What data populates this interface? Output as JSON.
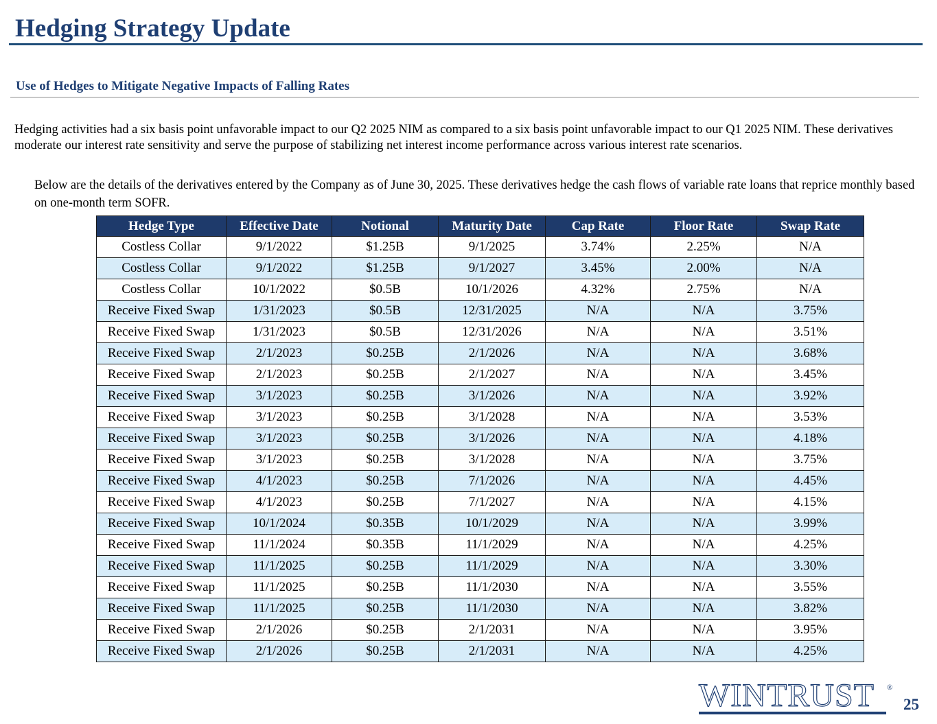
{
  "title": "Hedging Strategy Update",
  "subtitle": "Use of Hedges to Mitigate Negative Impacts of Falling Rates",
  "paragraphs": [
    "Hedging activities had a six basis point unfavorable impact to our Q2 2025 NIM as compared to a six basis point unfavorable impact to our Q1 2025 NIM. These derivatives moderate our interest rate sensitivity and serve the purpose of stabilizing net interest income performance across various interest rate scenarios.",
    "Below are the details of the derivatives entered by the Company as of June 30, 2025. These derivatives hedge the cash flows of variable rate loans that reprice monthly based on one-month term SOFR."
  ],
  "table": {
    "headers": [
      "Hedge Type",
      "Effective Date",
      "Notional",
      "Maturity Date",
      "Cap Rate",
      "Floor Rate",
      "Swap Rate"
    ],
    "rows": [
      [
        "Costless Collar",
        "9/1/2022",
        "$1.25B",
        "9/1/2025",
        "3.74%",
        "2.25%",
        "N/A"
      ],
      [
        "Costless Collar",
        "9/1/2022",
        "$1.25B",
        "9/1/2027",
        "3.45%",
        "2.00%",
        "N/A"
      ],
      [
        "Costless Collar",
        "10/1/2022",
        "$0.5B",
        "10/1/2026",
        "4.32%",
        "2.75%",
        "N/A"
      ],
      [
        "Receive Fixed Swap",
        "1/31/2023",
        "$0.5B",
        "12/31/2025",
        "N/A",
        "N/A",
        "3.75%"
      ],
      [
        "Receive Fixed Swap",
        "1/31/2023",
        "$0.5B",
        "12/31/2026",
        "N/A",
        "N/A",
        "3.51%"
      ],
      [
        "Receive Fixed Swap",
        "2/1/2023",
        "$0.25B",
        "2/1/2026",
        "N/A",
        "N/A",
        "3.68%"
      ],
      [
        "Receive Fixed Swap",
        "2/1/2023",
        "$0.25B",
        "2/1/2027",
        "N/A",
        "N/A",
        "3.45%"
      ],
      [
        "Receive Fixed Swap",
        "3/1/2023",
        "$0.25B",
        "3/1/2026",
        "N/A",
        "N/A",
        "3.92%"
      ],
      [
        "Receive Fixed Swap",
        "3/1/2023",
        "$0.25B",
        "3/1/2028",
        "N/A",
        "N/A",
        "3.53%"
      ],
      [
        "Receive Fixed Swap",
        "3/1/2023",
        "$0.25B",
        "3/1/2026",
        "N/A",
        "N/A",
        "4.18%"
      ],
      [
        "Receive Fixed Swap",
        "3/1/2023",
        "$0.25B",
        "3/1/2028",
        "N/A",
        "N/A",
        "3.75%"
      ],
      [
        "Receive Fixed Swap",
        "4/1/2023",
        "$0.25B",
        "7/1/2026",
        "N/A",
        "N/A",
        "4.45%"
      ],
      [
        "Receive Fixed Swap",
        "4/1/2023",
        "$0.25B",
        "7/1/2027",
        "N/A",
        "N/A",
        "4.15%"
      ],
      [
        "Receive Fixed Swap",
        "10/1/2024",
        "$0.35B",
        "10/1/2029",
        "N/A",
        "N/A",
        "3.99%"
      ],
      [
        "Receive Fixed Swap",
        "11/1/2024",
        "$0.35B",
        "11/1/2029",
        "N/A",
        "N/A",
        "4.25%"
      ],
      [
        "Receive Fixed Swap",
        "11/1/2025",
        "$0.25B",
        "11/1/2029",
        "N/A",
        "N/A",
        "3.30%"
      ],
      [
        "Receive Fixed Swap",
        "11/1/2025",
        "$0.25B",
        "11/1/2030",
        "N/A",
        "N/A",
        "3.55%"
      ],
      [
        "Receive Fixed Swap",
        "11/1/2025",
        "$0.25B",
        "11/1/2030",
        "N/A",
        "N/A",
        "3.82%"
      ],
      [
        "Receive Fixed Swap",
        "2/1/2026",
        "$0.25B",
        "2/1/2031",
        "N/A",
        "N/A",
        "3.95%"
      ],
      [
        "Receive Fixed Swap",
        "2/1/2026",
        "$0.25B",
        "2/1/2031",
        "N/A",
        "N/A",
        "4.25%"
      ]
    ]
  },
  "logo": {
    "text": "WINTRUST",
    "registered": "®"
  },
  "page_number": "25",
  "colors": {
    "heading": "#1f3f73",
    "header_fill": "#1e3a6b",
    "alt_row": "#d7ecf9"
  }
}
